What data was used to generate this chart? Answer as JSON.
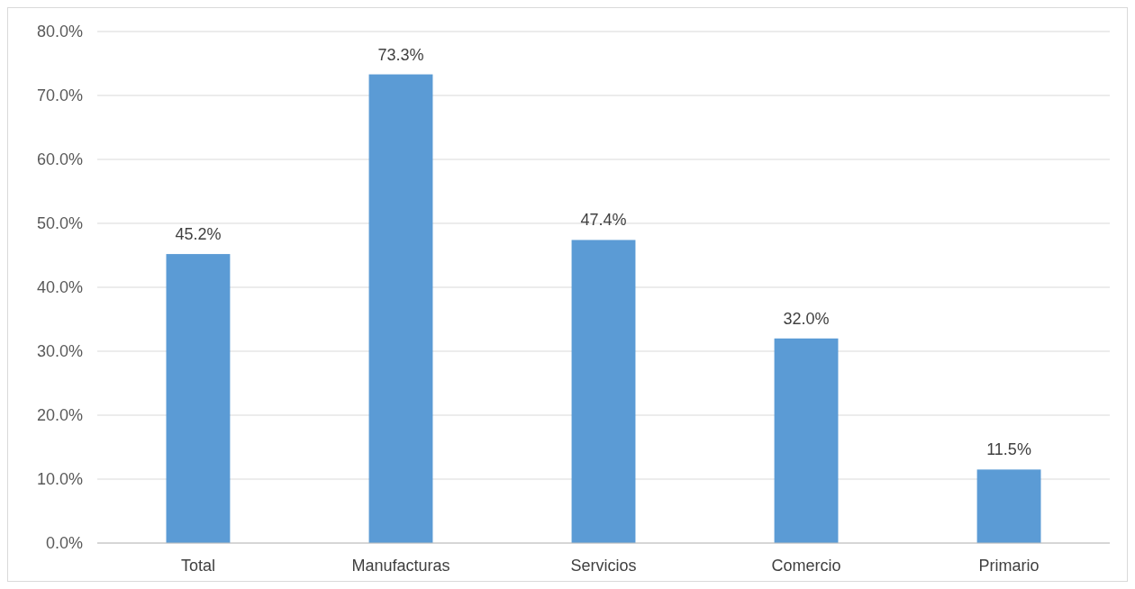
{
  "chart_data": {
    "type": "bar",
    "categories": [
      "Total",
      "Manufacturas",
      "Servicios",
      "Comercio",
      "Primario"
    ],
    "values": [
      45.2,
      73.3,
      47.4,
      32.0,
      11.5
    ],
    "value_labels": [
      "45.2%",
      "73.3%",
      "47.4%",
      "32.0%",
      "11.5%"
    ],
    "color": "#5b9bd5",
    "ylim": [
      0,
      80
    ],
    "yticks": [
      {
        "value": 0,
        "label": "0.0%"
      },
      {
        "value": 10,
        "label": "10.0%"
      },
      {
        "value": 20,
        "label": "20.0%"
      },
      {
        "value": 30,
        "label": "30.0%"
      },
      {
        "value": 40,
        "label": "40.0%"
      },
      {
        "value": 50,
        "label": "50.0%"
      },
      {
        "value": 60,
        "label": "60.0%"
      },
      {
        "value": 70,
        "label": "70.0%"
      },
      {
        "value": 80,
        "label": "80.0%"
      }
    ],
    "grid": "y"
  }
}
